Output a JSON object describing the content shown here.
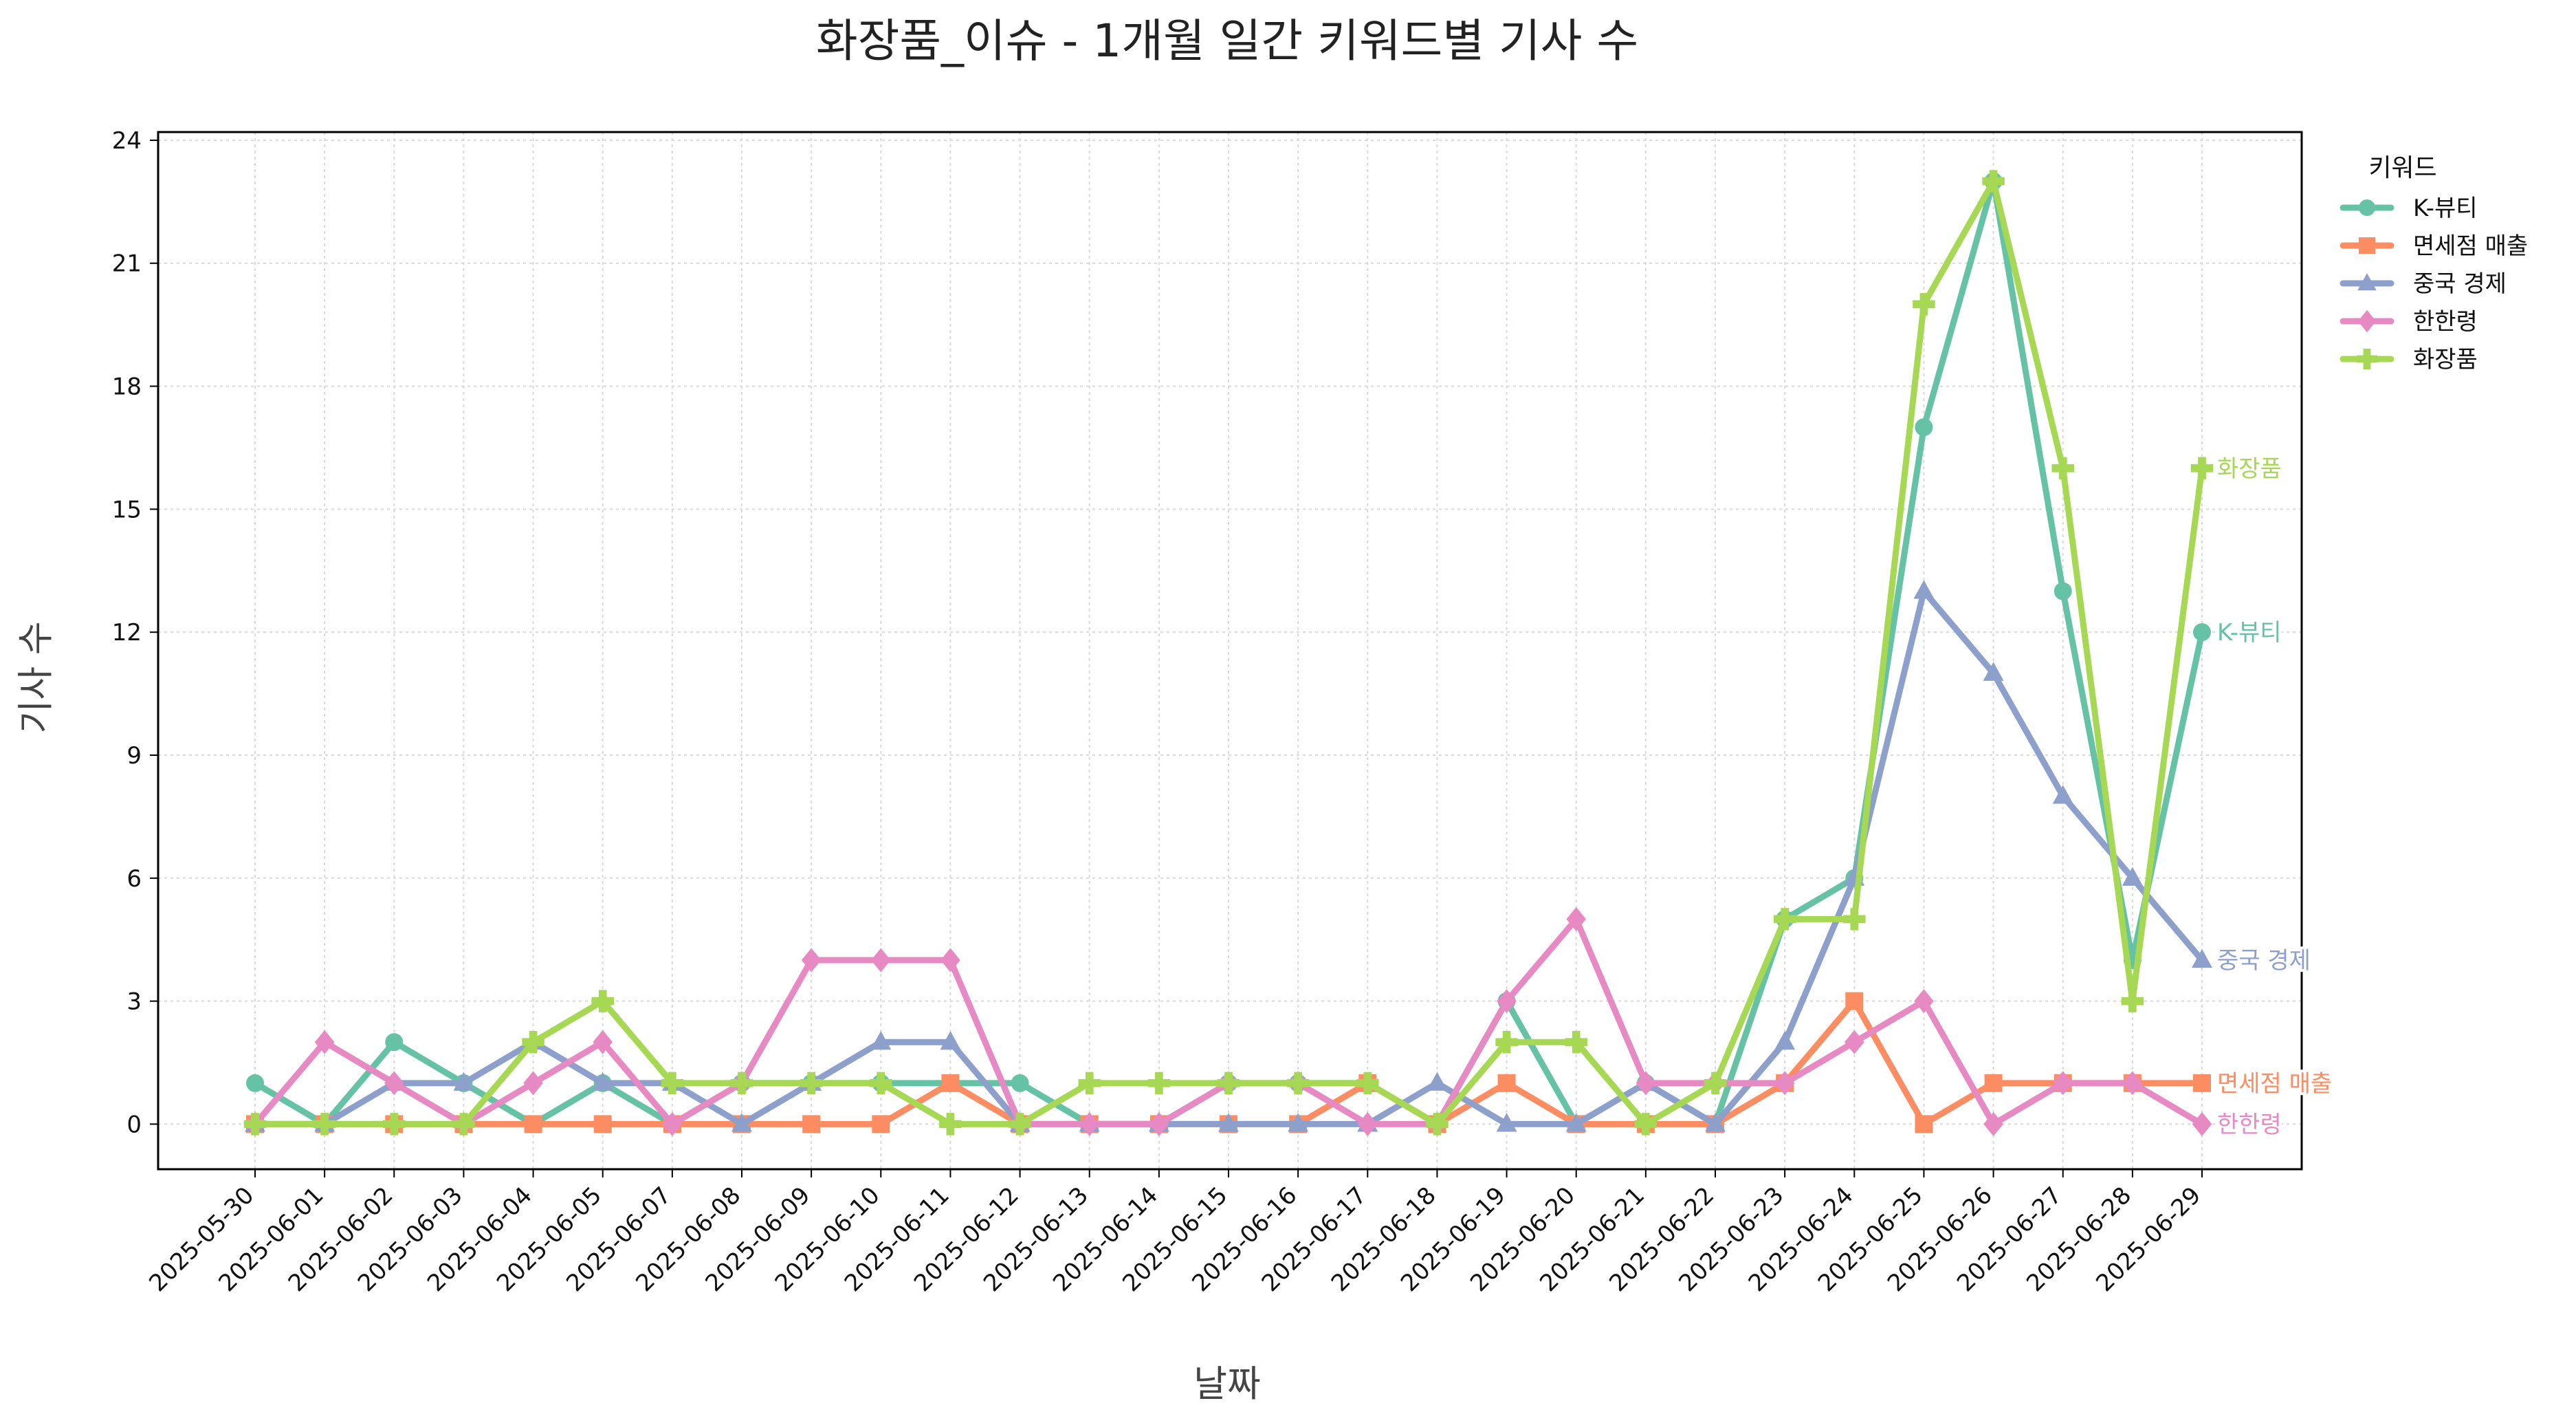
{
  "chart_data": {
    "type": "line",
    "title": "화장품_이슈 - 1개월 일간 키워드별 기사 수",
    "xlabel": "날짜",
    "ylabel": "기사 수",
    "ylim": [
      -1.1,
      24.2
    ],
    "yticks": [
      0,
      3,
      6,
      9,
      12,
      15,
      18,
      21,
      24
    ],
    "grid": true,
    "legend": {
      "title": "키워드",
      "placement": "outside-top-right"
    },
    "x": [
      "2025-05-30",
      "2025-06-01",
      "2025-06-02",
      "2025-06-03",
      "2025-06-04",
      "2025-06-05",
      "2025-06-07",
      "2025-06-08",
      "2025-06-09",
      "2025-06-10",
      "2025-06-11",
      "2025-06-12",
      "2025-06-13",
      "2025-06-14",
      "2025-06-15",
      "2025-06-16",
      "2025-06-17",
      "2025-06-18",
      "2025-06-19",
      "2025-06-20",
      "2025-06-21",
      "2025-06-22",
      "2025-06-23",
      "2025-06-24",
      "2025-06-25",
      "2025-06-26",
      "2025-06-27",
      "2025-06-28",
      "2025-06-29"
    ],
    "series": [
      {
        "name": "K-뷰티",
        "color": "#66c2a5",
        "marker": "circle",
        "values": [
          1,
          0,
          2,
          1,
          0,
          1,
          0,
          1,
          1,
          1,
          1,
          1,
          0,
          0,
          1,
          1,
          1,
          0,
          3,
          0,
          1,
          0,
          5,
          6,
          17,
          23,
          13,
          4,
          12
        ]
      },
      {
        "name": "면세점 매출",
        "color": "#fc8d62",
        "marker": "square",
        "values": [
          0,
          0,
          0,
          0,
          0,
          0,
          0,
          0,
          0,
          0,
          1,
          0,
          0,
          0,
          0,
          0,
          1,
          0,
          1,
          0,
          0,
          0,
          1,
          3,
          0,
          1,
          1,
          1,
          1
        ]
      },
      {
        "name": "중국 경제",
        "color": "#8da0cb",
        "marker": "triangle",
        "values": [
          0,
          0,
          1,
          1,
          2,
          1,
          1,
          0,
          1,
          2,
          2,
          0,
          0,
          0,
          0,
          0,
          0,
          1,
          0,
          0,
          1,
          0,
          2,
          6,
          13,
          11,
          8,
          6,
          4
        ]
      },
      {
        "name": "한한령",
        "color": "#e78ac3",
        "marker": "diamond",
        "values": [
          0,
          2,
          1,
          0,
          1,
          2,
          0,
          1,
          4,
          4,
          4,
          0,
          0,
          0,
          1,
          1,
          0,
          0,
          3,
          5,
          1,
          1,
          1,
          2,
          3,
          0,
          1,
          1,
          0
        ]
      },
      {
        "name": "화장품",
        "color": "#a6d854",
        "marker": "plus",
        "values": [
          0,
          0,
          0,
          0,
          2,
          3,
          1,
          1,
          1,
          1,
          0,
          0,
          1,
          1,
          1,
          1,
          1,
          0,
          2,
          2,
          0,
          1,
          5,
          5,
          20,
          23,
          16,
          3,
          16
        ]
      }
    ]
  }
}
